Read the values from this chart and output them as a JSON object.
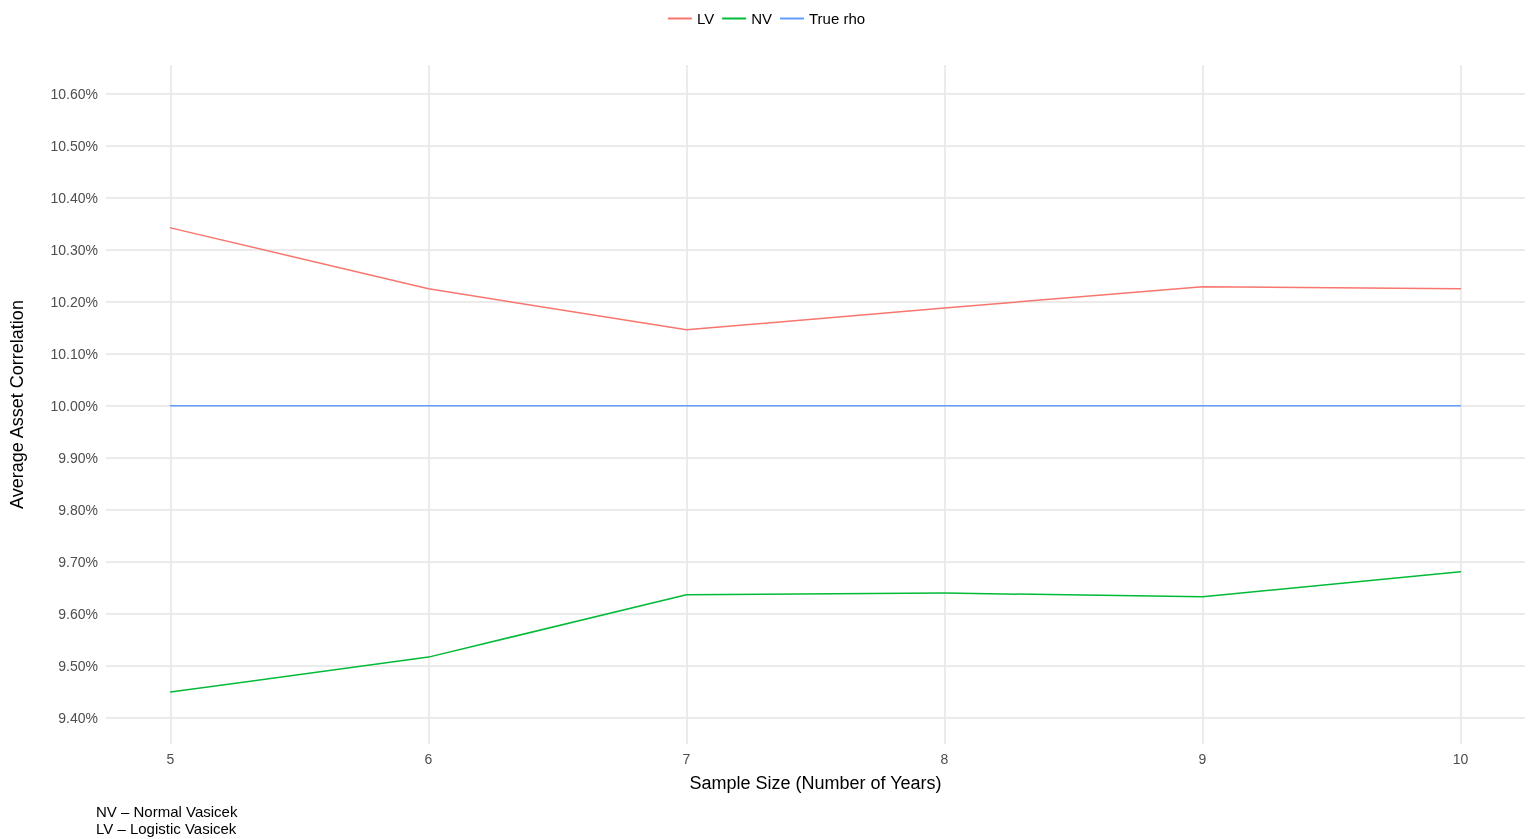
{
  "chart_data": {
    "type": "line",
    "xlabel": "Sample Size (Number of Years)",
    "ylabel": "Average Asset Correlation",
    "x": [
      5,
      6,
      7,
      8,
      9,
      10
    ],
    "xlim": [
      4.75,
      10.25
    ],
    "xticks": [
      5,
      6,
      7,
      8,
      9,
      10
    ],
    "ylim": [
      9.35,
      10.655
    ],
    "yticks": [
      {
        "value": 9.4,
        "label": "9.40%"
      },
      {
        "value": 9.5,
        "label": "9.50%"
      },
      {
        "value": 9.6,
        "label": "9.60%"
      },
      {
        "value": 9.7,
        "label": "9.70%"
      },
      {
        "value": 9.8,
        "label": "9.80%"
      },
      {
        "value": 9.9,
        "label": "9.90%"
      },
      {
        "value": 10.0,
        "label": "10.00%"
      },
      {
        "value": 10.1,
        "label": "10.10%"
      },
      {
        "value": 10.2,
        "label": "10.20%"
      },
      {
        "value": 10.3,
        "label": "10.30%"
      },
      {
        "value": 10.4,
        "label": "10.40%"
      },
      {
        "value": 10.5,
        "label": "10.50%"
      },
      {
        "value": 10.6,
        "label": "10.60%"
      }
    ],
    "series": [
      {
        "name": "LV",
        "color": "#f8766d",
        "values": [
          10.342,
          10.225,
          10.146,
          10.188,
          10.229,
          10.225
        ]
      },
      {
        "name": "NV",
        "color": "#00ba38",
        "values": [
          9.45,
          9.517,
          9.637,
          9.64,
          9.633,
          9.681
        ]
      },
      {
        "name": "True rho",
        "color": "#619cff",
        "values": [
          10.0,
          10.0,
          10.0,
          10.0,
          10.0,
          10.0
        ]
      }
    ],
    "grid": true,
    "legend": "top",
    "marker": "none",
    "line_style": "solid",
    "annotations": [
      "NV – Normal Vasicek",
      "LV – Logistic Vasicek"
    ]
  }
}
